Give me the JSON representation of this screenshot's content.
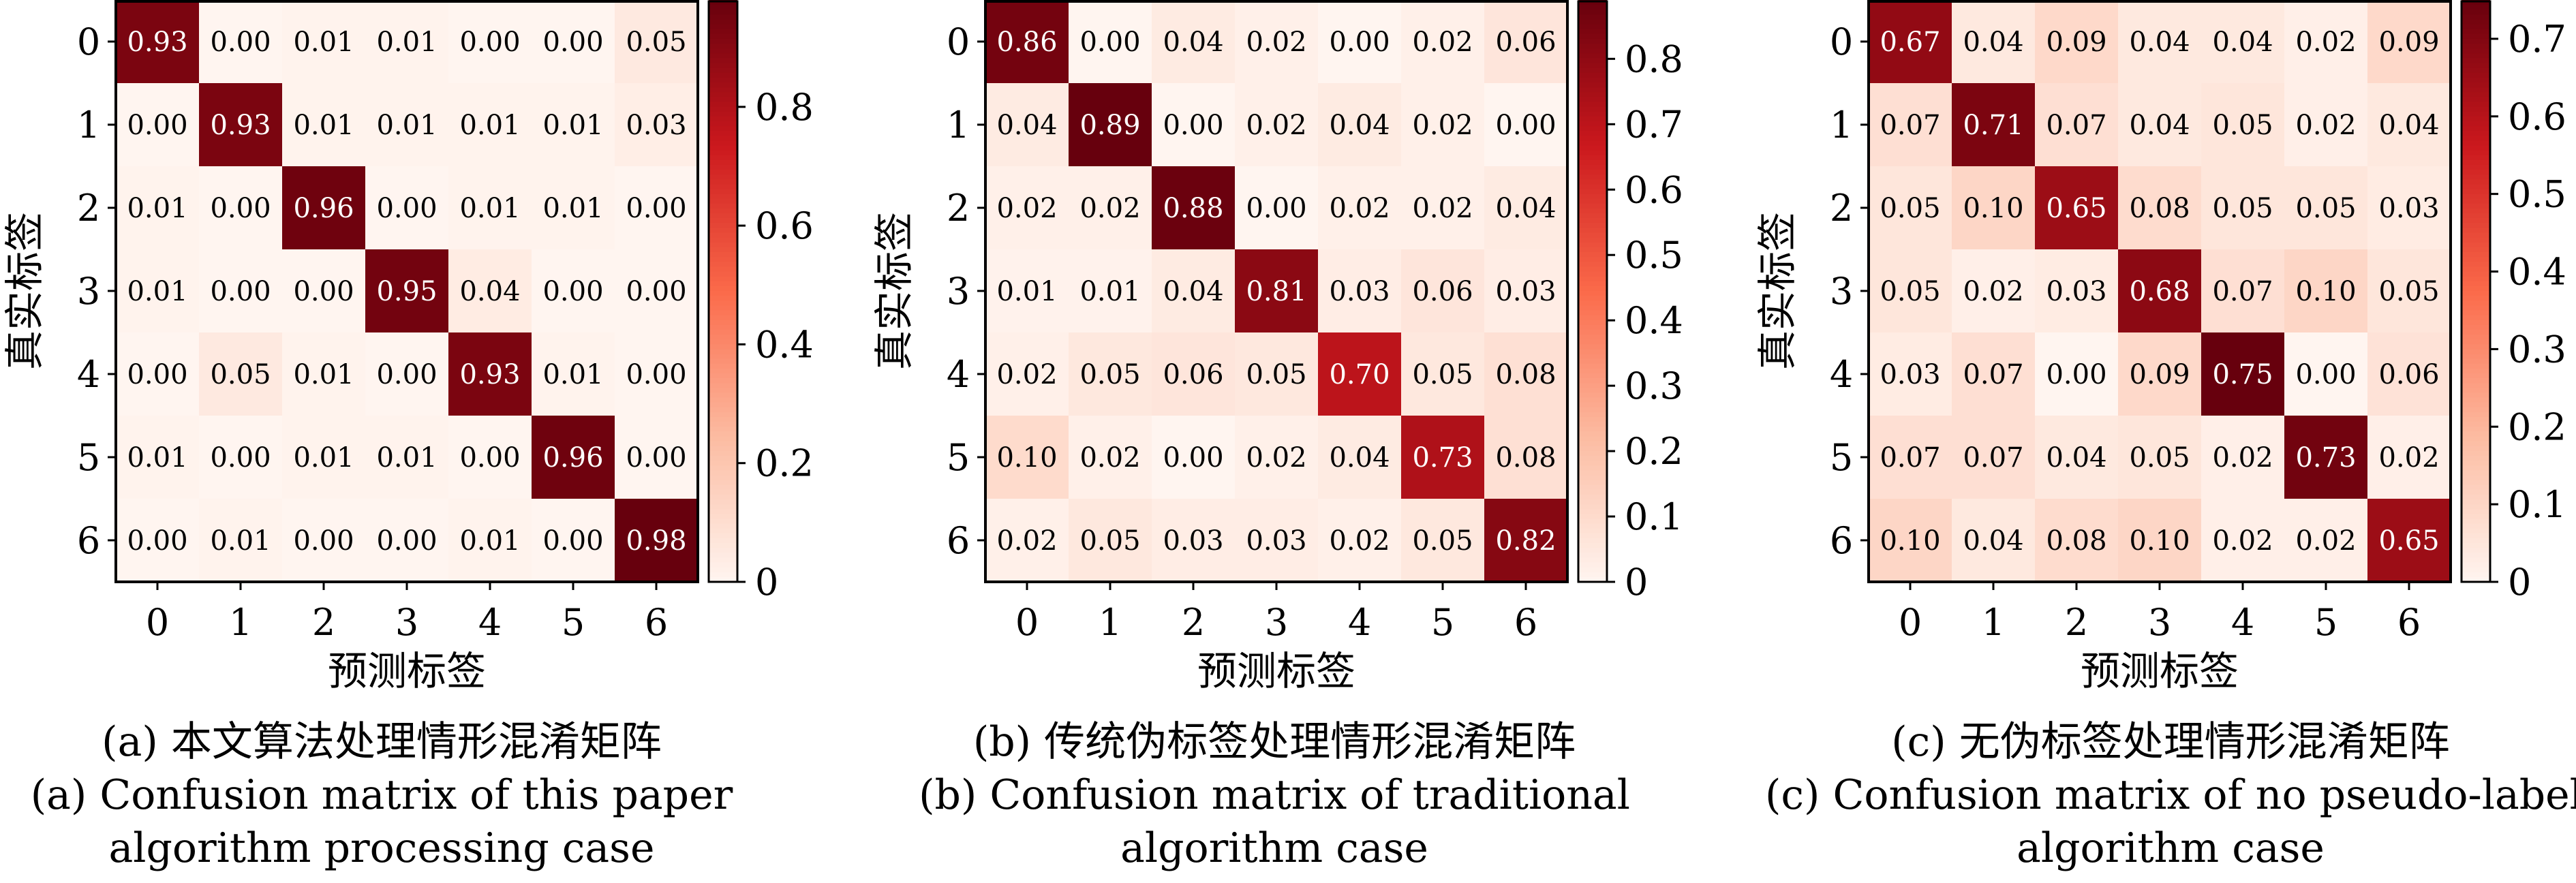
{
  "chart_data": [
    {
      "type": "heatmap",
      "xlabel": "预测标签",
      "ylabel": "真实标签",
      "x_ticks": [
        "0",
        "1",
        "2",
        "3",
        "4",
        "5",
        "6"
      ],
      "y_ticks": [
        "0",
        "1",
        "2",
        "3",
        "4",
        "5",
        "6"
      ],
      "colorbar": {
        "min": 0,
        "max": 0.98,
        "ticks": [
          0,
          0.2,
          0.4,
          0.6,
          0.8
        ],
        "tick_labels": [
          "0",
          "0.2",
          "0.4",
          "0.6",
          "0.8"
        ]
      },
      "colormap": [
        "#fff5f0",
        "#fcbba1",
        "#fb6a4a",
        "#cb181d",
        "#67000d"
      ],
      "values": [
        [
          "0.93",
          "0.00",
          "0.01",
          "0.01",
          "0.00",
          "0.00",
          "0.05"
        ],
        [
          "0.00",
          "0.93",
          "0.01",
          "0.01",
          "0.01",
          "0.01",
          "0.03"
        ],
        [
          "0.01",
          "0.00",
          "0.96",
          "0.00",
          "0.01",
          "0.01",
          "0.00"
        ],
        [
          "0.01",
          "0.00",
          "0.00",
          "0.95",
          "0.04",
          "0.00",
          "0.00"
        ],
        [
          "0.00",
          "0.05",
          "0.01",
          "0.00",
          "0.93",
          "0.01",
          "0.00"
        ],
        [
          "0.01",
          "0.00",
          "0.01",
          "0.01",
          "0.00",
          "0.96",
          "0.00"
        ],
        [
          "0.00",
          "0.01",
          "0.00",
          "0.00",
          "0.01",
          "0.00",
          "0.98"
        ]
      ],
      "caption_cn": "(a) 本文算法处理情形混淆矩阵",
      "caption_en_1": "(a) Confusion matrix of this paper",
      "caption_en_2": "algorithm processing case"
    },
    {
      "type": "heatmap",
      "xlabel": "预测标签",
      "ylabel": "真实标签",
      "x_ticks": [
        "0",
        "1",
        "2",
        "3",
        "4",
        "5",
        "6"
      ],
      "y_ticks": [
        "0",
        "1",
        "2",
        "3",
        "4",
        "5",
        "6"
      ],
      "colorbar": {
        "min": 0,
        "max": 0.89,
        "ticks": [
          0,
          0.1,
          0.2,
          0.3,
          0.4,
          0.5,
          0.6,
          0.7,
          0.8
        ],
        "tick_labels": [
          "0",
          "0.1",
          "0.2",
          "0.3",
          "0.4",
          "0.5",
          "0.6",
          "0.7",
          "0.8"
        ]
      },
      "colormap": [
        "#fff5f0",
        "#fcbba1",
        "#fb6a4a",
        "#cb181d",
        "#67000d"
      ],
      "values": [
        [
          "0.86",
          "0.00",
          "0.04",
          "0.02",
          "0.00",
          "0.02",
          "0.06"
        ],
        [
          "0.04",
          "0.89",
          "0.00",
          "0.02",
          "0.04",
          "0.02",
          "0.00"
        ],
        [
          "0.02",
          "0.02",
          "0.88",
          "0.00",
          "0.02",
          "0.02",
          "0.04"
        ],
        [
          "0.01",
          "0.01",
          "0.04",
          "0.81",
          "0.03",
          "0.06",
          "0.03"
        ],
        [
          "0.02",
          "0.05",
          "0.06",
          "0.05",
          "0.70",
          "0.05",
          "0.08"
        ],
        [
          "0.10",
          "0.02",
          "0.00",
          "0.02",
          "0.04",
          "0.73",
          "0.08"
        ],
        [
          "0.02",
          "0.05",
          "0.03",
          "0.03",
          "0.02",
          "0.05",
          "0.82"
        ]
      ],
      "caption_cn": "(b) 传统伪标签处理情形混淆矩阵",
      "caption_en_1": "(b) Confusion matrix of traditional",
      "caption_en_2": "algorithm case"
    },
    {
      "type": "heatmap",
      "xlabel": "预测标签",
      "ylabel": "真实标签",
      "x_ticks": [
        "0",
        "1",
        "2",
        "3",
        "4",
        "5",
        "6"
      ],
      "y_ticks": [
        "0",
        "1",
        "2",
        "3",
        "4",
        "5",
        "6"
      ],
      "colorbar": {
        "min": 0,
        "max": 0.75,
        "ticks": [
          0,
          0.1,
          0.2,
          0.3,
          0.4,
          0.5,
          0.6,
          0.7
        ],
        "tick_labels": [
          "0",
          "0.1",
          "0.2",
          "0.3",
          "0.4",
          "0.5",
          "0.6",
          "0.7"
        ]
      },
      "colormap": [
        "#fff5f0",
        "#fcbba1",
        "#fb6a4a",
        "#cb181d",
        "#67000d"
      ],
      "values": [
        [
          "0.67",
          "0.04",
          "0.09",
          "0.04",
          "0.04",
          "0.02",
          "0.09"
        ],
        [
          "0.07",
          "0.71",
          "0.07",
          "0.04",
          "0.05",
          "0.02",
          "0.04"
        ],
        [
          "0.05",
          "0.10",
          "0.65",
          "0.08",
          "0.05",
          "0.05",
          "0.03"
        ],
        [
          "0.05",
          "0.02",
          "0.03",
          "0.68",
          "0.07",
          "0.10",
          "0.05"
        ],
        [
          "0.03",
          "0.07",
          "0.00",
          "0.09",
          "0.75",
          "0.00",
          "0.06"
        ],
        [
          "0.07",
          "0.07",
          "0.04",
          "0.05",
          "0.02",
          "0.73",
          "0.02"
        ],
        [
          "0.10",
          "0.04",
          "0.08",
          "0.10",
          "0.02",
          "0.02",
          "0.65"
        ]
      ],
      "caption_cn": "(c) 无伪标签处理情形混淆矩阵",
      "caption_en_1": "(c) Confusion matrix of no pseudo-label",
      "caption_en_2": "algorithm case"
    }
  ]
}
